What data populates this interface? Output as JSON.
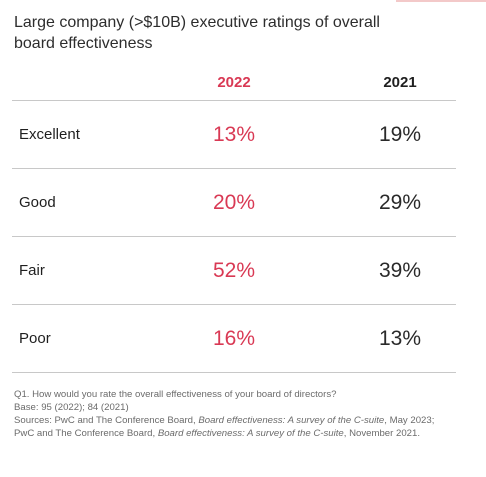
{
  "title": "Large company (>$10B) executive ratings of overall board effectiveness",
  "colors": {
    "year_2022": "#d93954",
    "year_2021": "#2a2a2a",
    "rule": "#c8c8c8",
    "notes": "#6b6b6b"
  },
  "chart_data": {
    "type": "table",
    "title": "Large company (>$10B) executive ratings of overall board effectiveness",
    "columns": [
      "2022",
      "2021"
    ],
    "categories": [
      "Excellent",
      "Good",
      "Fair",
      "Poor"
    ],
    "series": [
      {
        "name": "2022",
        "values": [
          13,
          20,
          52,
          16
        ]
      },
      {
        "name": "2021",
        "values": [
          19,
          29,
          39,
          13
        ]
      }
    ],
    "unit": "%",
    "rows": [
      {
        "label": "Excellent",
        "v2022": "13%",
        "v2021": "19%"
      },
      {
        "label": "Good",
        "v2022": "20%",
        "v2021": "29%"
      },
      {
        "label": "Fair",
        "v2022": "52%",
        "v2021": "39%"
      },
      {
        "label": "Poor",
        "v2022": "16%",
        "v2021": "13%"
      }
    ]
  },
  "notes": {
    "question": "Q1. How would you rate the overall effectiveness of your board of directors?",
    "base": "Base: 95 (2022); 84 (2021)",
    "sources_prefix": "Sources: PwC and The Conference Board, ",
    "source1_title": "Board effectiveness: A survey of the C-suite",
    "source1_date": ", May 2023; PwC and The Conference Board, ",
    "source2_title": "Board effectiveness: A survey of the C-suite",
    "source2_date": ", November 2021."
  }
}
